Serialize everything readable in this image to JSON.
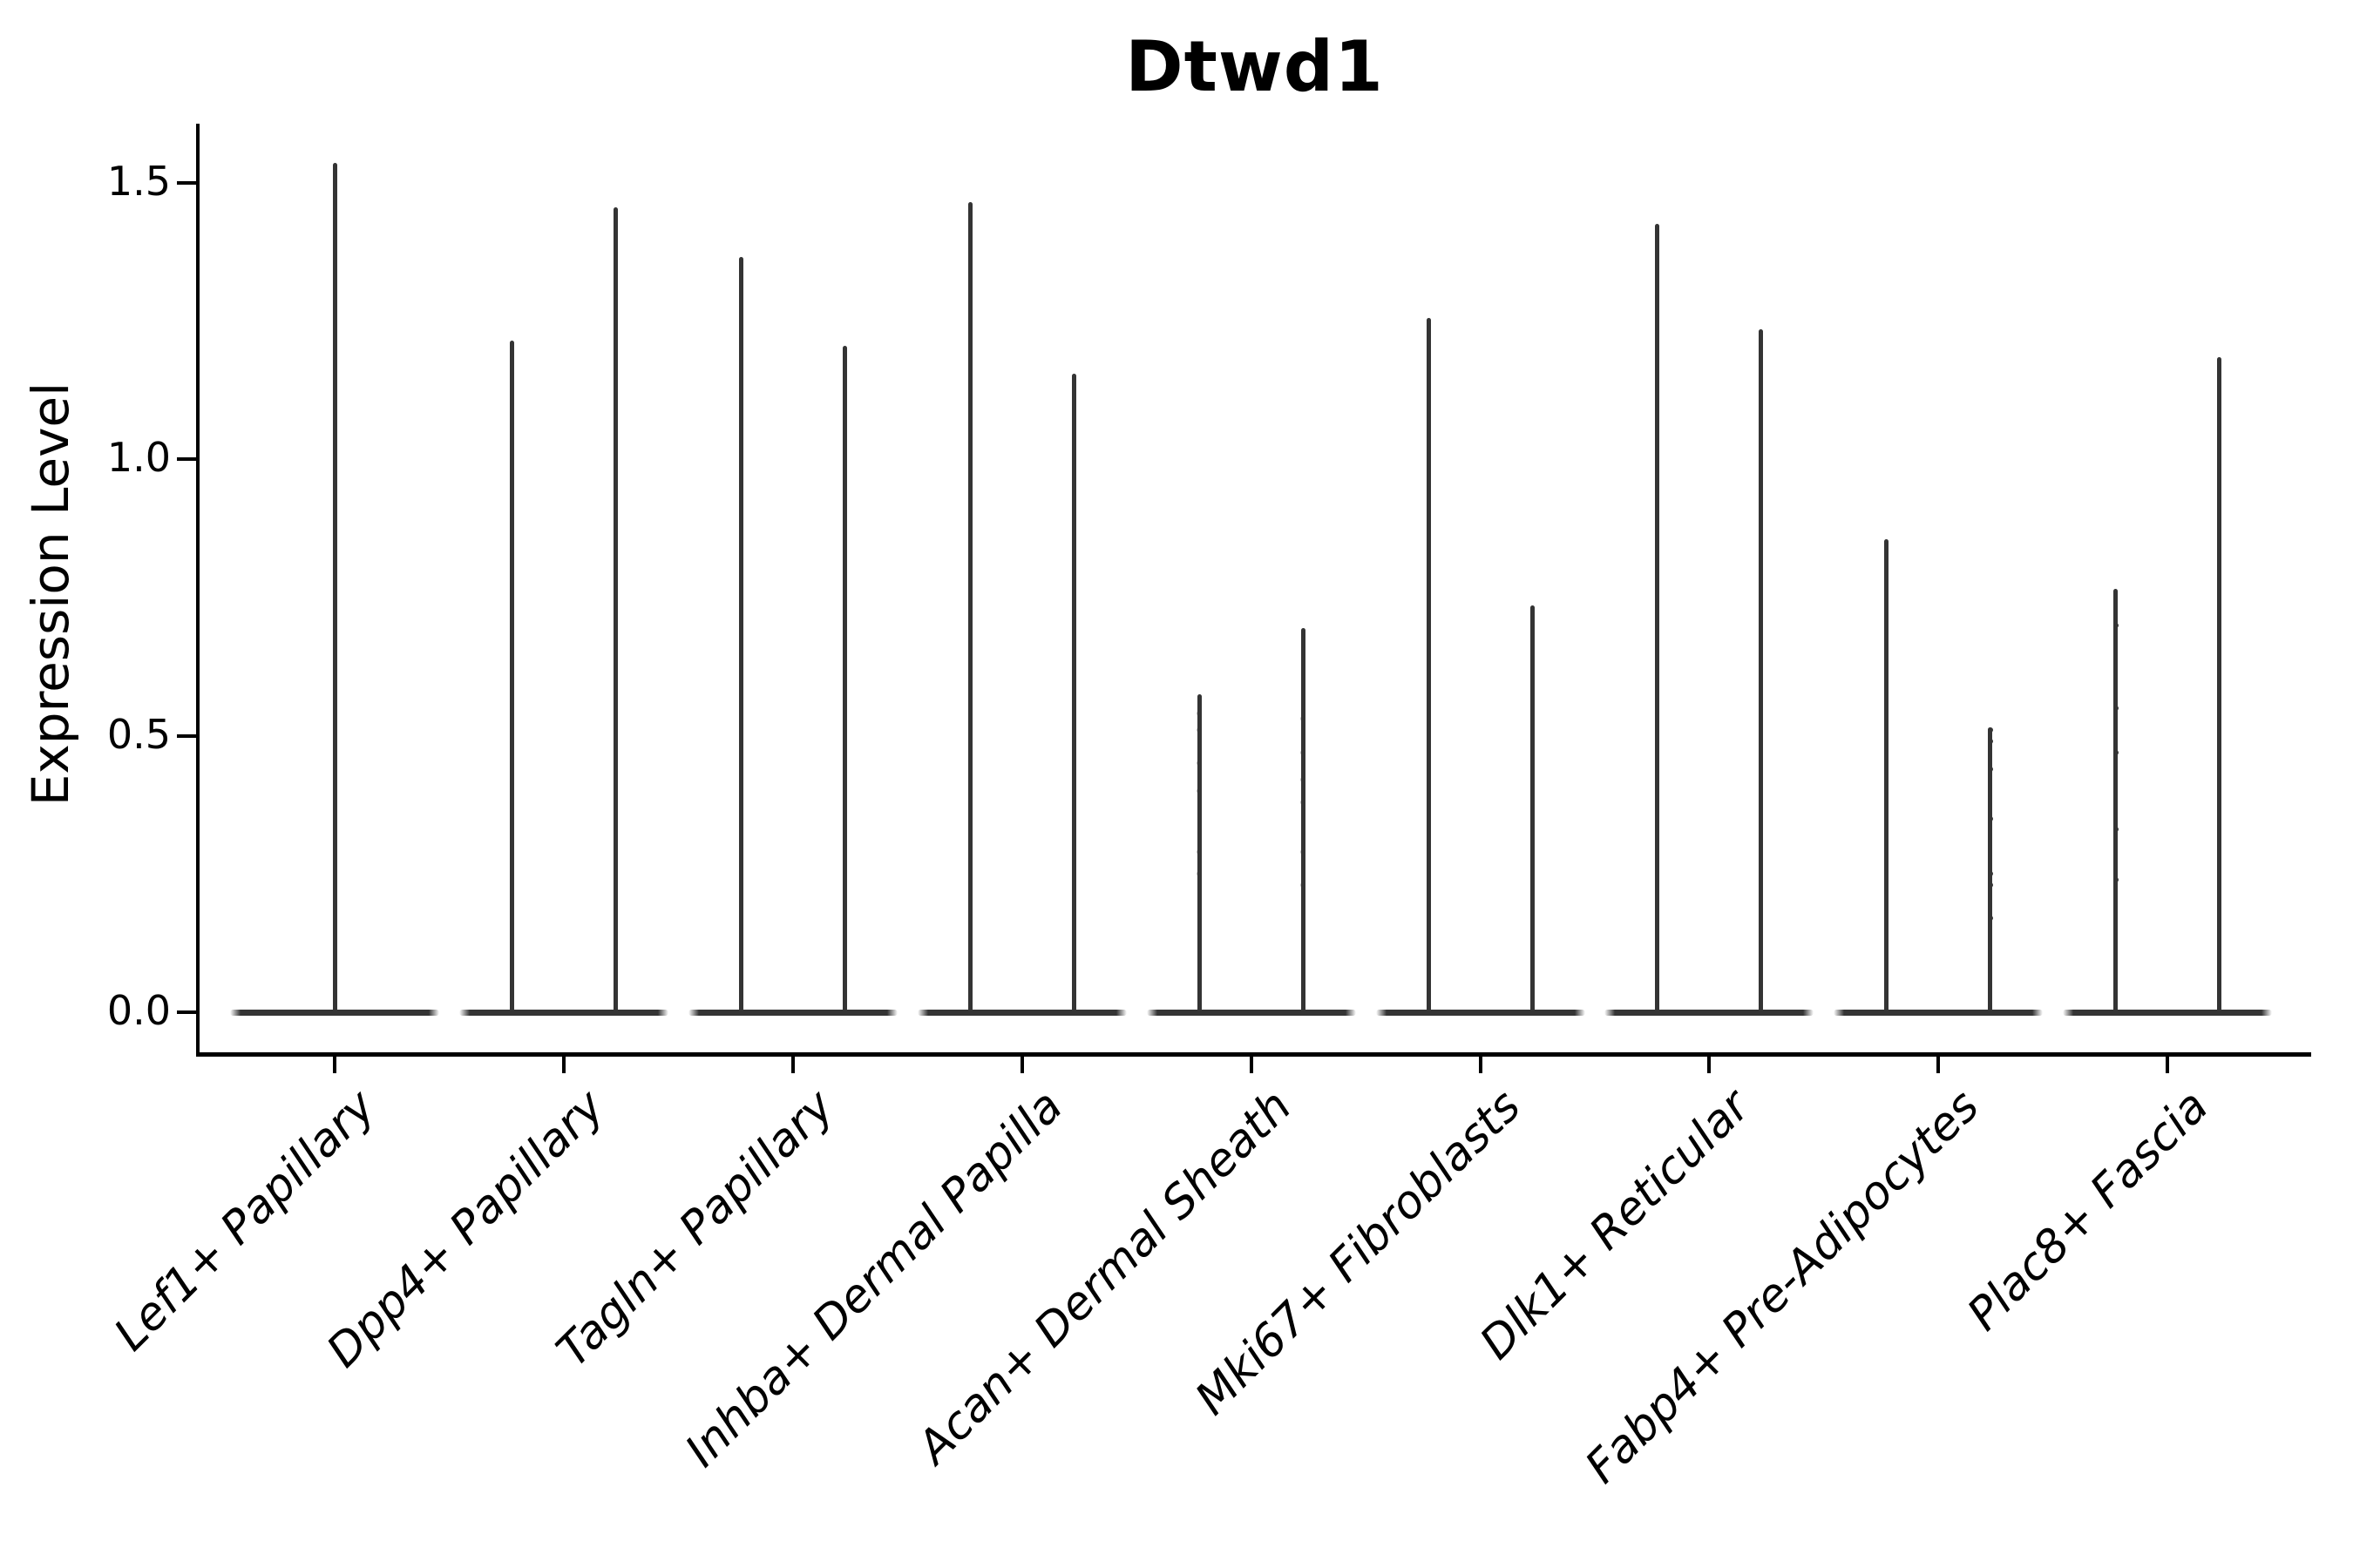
{
  "title": "Dtwd1",
  "axes": {
    "ylabel": "Expression Level",
    "ytick_labels": [
      "0.0",
      "0.5",
      "1.0",
      "1.5"
    ],
    "ytick_values": [
      0.0,
      0.5,
      1.0,
      1.5
    ]
  },
  "colors": {
    "violin": "#343434",
    "axis": "#000000",
    "text": "#000000",
    "background": "#ffffff"
  },
  "chart_data": {
    "type": "violin",
    "title": "Dtwd1",
    "xlabel": "",
    "ylabel": "Expression Level",
    "ylim": [
      -0.08,
      1.61
    ],
    "yticks": [
      0.0,
      0.5,
      1.0,
      1.5
    ],
    "grid": false,
    "legend": "none",
    "description": "Stacked-violin style gene expression plot; most cells at 0 (flat violin bodies) with thin tails reaching the max expression value; nine cell-type categories, first with one violin, the rest with two side-by-side violins",
    "categories": [
      "Lef1+ Papillary",
      "Dpp4+ Papillary",
      "Tagln+ Papillary",
      "Inhba+ Dermal Papilla",
      "Acan+ Dermal Sheath",
      "Mki67+ Fibroblasts",
      "Dlk1+ Reticular",
      "Fabp4+ Pre-Adipocytes",
      "Plac8+ Fascia"
    ],
    "violins": [
      {
        "category": "Lef1+ Papillary",
        "group": 0,
        "single": true,
        "max": 1.53,
        "dots": [],
        "dots_faint": false
      },
      {
        "category": "Dpp4+ Papillary",
        "group": 0,
        "single": false,
        "max": 1.21,
        "dots": [],
        "dots_faint": false
      },
      {
        "category": "Dpp4+ Papillary",
        "group": 1,
        "single": false,
        "max": 1.45,
        "dots": [],
        "dots_faint": false
      },
      {
        "category": "Tagln+ Papillary",
        "group": 0,
        "single": false,
        "max": 1.36,
        "dots": [],
        "dots_faint": false
      },
      {
        "category": "Tagln+ Papillary",
        "group": 1,
        "single": false,
        "max": 1.2,
        "dots": [],
        "dots_faint": false
      },
      {
        "category": "Inhba+ Dermal Papilla",
        "group": 0,
        "single": false,
        "max": 1.46,
        "dots": [],
        "dots_faint": false
      },
      {
        "category": "Inhba+ Dermal Papilla",
        "group": 1,
        "single": false,
        "max": 1.15,
        "dots": [],
        "dots_faint": false
      },
      {
        "category": "Acan+ Dermal Sheath",
        "group": 0,
        "single": false,
        "max": 0.57,
        "dots": [
          0.54,
          0.51,
          0.45,
          0.4,
          0.29,
          0.25
        ],
        "dots_faint": true
      },
      {
        "category": "Acan+ Dermal Sheath",
        "group": 1,
        "single": false,
        "max": 0.69,
        "dots": [
          0.53,
          0.47,
          0.42,
          0.38,
          0.29,
          0.23
        ],
        "dots_faint": true
      },
      {
        "category": "Mki67+ Fibroblasts",
        "group": 0,
        "single": false,
        "max": 1.25,
        "dots": [],
        "dots_faint": false
      },
      {
        "category": "Mki67+ Fibroblasts",
        "group": 1,
        "single": false,
        "max": 0.73,
        "dots": [],
        "dots_faint": false
      },
      {
        "category": "Dlk1+ Reticular",
        "group": 0,
        "single": false,
        "max": 1.42,
        "dots": [],
        "dots_faint": false
      },
      {
        "category": "Dlk1+ Reticular",
        "group": 1,
        "single": false,
        "max": 1.23,
        "dots": [],
        "dots_faint": false
      },
      {
        "category": "Fabp4+ Pre-Adipocytes",
        "group": 0,
        "single": false,
        "max": 0.85,
        "dots": [],
        "dots_faint": false
      },
      {
        "category": "Fabp4+ Pre-Adipocytes",
        "group": 1,
        "single": false,
        "max": 0.51,
        "dots": [
          0.51,
          0.49,
          0.44,
          0.35,
          0.25,
          0.23,
          0.17
        ],
        "dots_faint": false
      },
      {
        "category": "Plac8+ Fascia",
        "group": 0,
        "single": false,
        "max": 0.76,
        "dots": [
          0.7,
          0.55,
          0.47,
          0.33,
          0.24
        ],
        "dots_faint": false
      },
      {
        "category": "Plac8+ Fascia",
        "group": 1,
        "single": false,
        "max": 1.18,
        "dots": [],
        "dots_faint": false
      }
    ]
  }
}
